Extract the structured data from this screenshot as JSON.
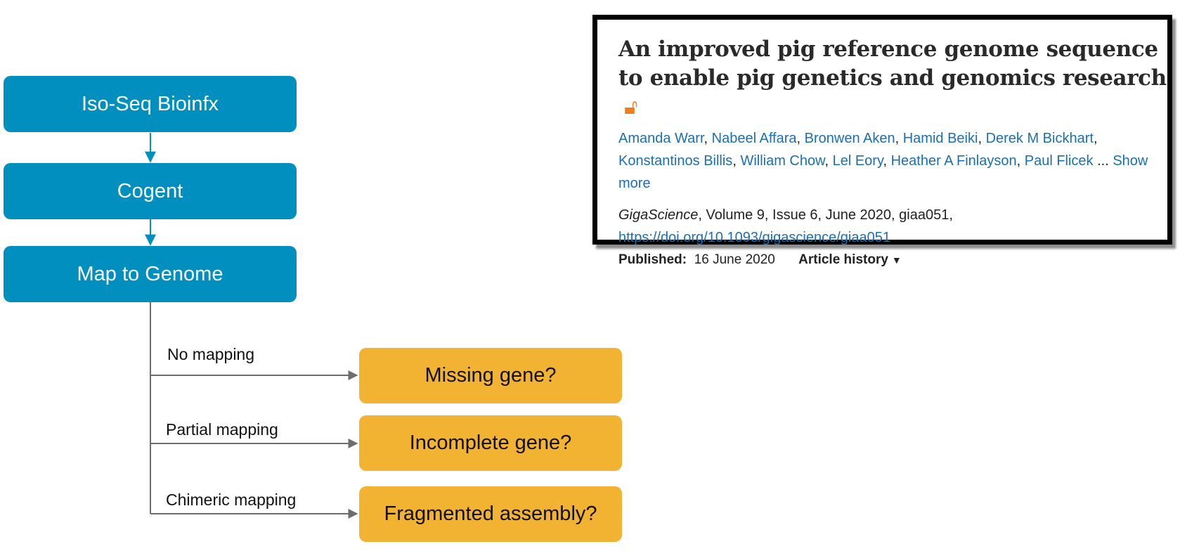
{
  "flow": {
    "steps": [
      "Iso-Seq Bioinfx",
      "Cogent",
      "Map to Genome"
    ],
    "branches": [
      {
        "label": "No mapping",
        "outcome": "Missing gene?"
      },
      {
        "label": "Partial mapping",
        "outcome": "Incomplete gene?"
      },
      {
        "label": "Chimeric mapping",
        "outcome": "Fragmented assembly?"
      }
    ]
  },
  "paper": {
    "title": "An improved pig reference genome sequence to enable pig genetics and genomics research",
    "open_access_icon": "open-lock-icon",
    "authors": [
      "Amanda Warr",
      "Nabeel Affara",
      "Bronwen Aken",
      "Hamid Beiki",
      "Derek M Bickhart",
      "Konstantinos Billis",
      "William Chow",
      "Lel Eory",
      "Heather A Finlayson",
      "Paul Flicek"
    ],
    "ellipsis": "...",
    "show_more": "Show more",
    "journal": "GigaScience",
    "citation_rest": ", Volume 9, Issue 6, June 2020, giaa051,",
    "doi": "https://doi.org/10.1093/gigascience/giaa051",
    "published_label": "Published:",
    "published_date": "16 June 2020",
    "history_label": "Article history"
  },
  "colors": {
    "step_fill": "#008fbe",
    "outcome_fill": "#f2b232",
    "connector": "#6d6d6d",
    "step_arrow": "#008fbe",
    "link": "#1a6fb5",
    "oa_icon": "#f07e1e"
  }
}
